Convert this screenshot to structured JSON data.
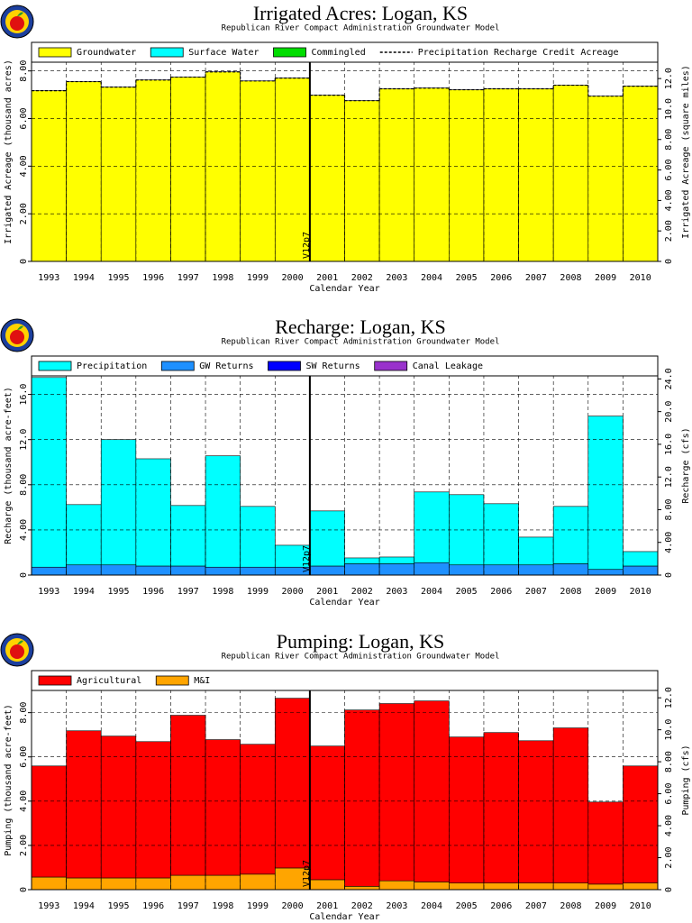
{
  "chart_data": [
    {
      "type": "bar",
      "stacked": true,
      "title": "Irrigated Acres:  Logan,  KS",
      "subtitle": "Republican River Compact Administration Groundwater Model",
      "xlabel": "Calendar Year",
      "ylabel": "Irrigated Acreage (thousand acres)",
      "y2label": "Irrigated Acreage (square miles)",
      "annotation": {
        "text": "V12p7",
        "category": "2001"
      },
      "categories": [
        "1993",
        "1994",
        "1995",
        "1996",
        "1997",
        "1998",
        "1999",
        "2000",
        "2001",
        "2002",
        "2003",
        "2004",
        "2005",
        "2006",
        "2007",
        "2008",
        "2009",
        "2010"
      ],
      "series": [
        {
          "name": "Groundwater",
          "color": "#ffff00",
          "values": [
            7.17,
            7.55,
            7.32,
            7.62,
            7.74,
            7.96,
            7.58,
            7.7,
            6.98,
            6.75,
            7.25,
            7.28,
            7.21,
            7.25,
            7.25,
            7.4,
            6.94,
            7.36
          ]
        },
        {
          "name": "Surface Water",
          "color": "#00ffff",
          "values": [
            0,
            0,
            0,
            0,
            0,
            0,
            0,
            0,
            0,
            0,
            0,
            0,
            0,
            0,
            0,
            0,
            0,
            0
          ]
        },
        {
          "name": "Commingled",
          "color": "#00dd00",
          "values": [
            0,
            0,
            0,
            0,
            0,
            0,
            0,
            0,
            0,
            0,
            0,
            0,
            0,
            0,
            0,
            0,
            0,
            0
          ]
        },
        {
          "name": "Precipitation Recharge Credit Acreage",
          "color": "#000000",
          "dashed": true,
          "values": [
            7.17,
            7.55,
            7.32,
            7.62,
            7.74,
            7.96,
            7.58,
            7.7,
            6.98,
            6.75,
            7.25,
            7.28,
            7.21,
            7.25,
            7.25,
            7.4,
            6.94,
            7.36
          ]
        }
      ],
      "ylim": [
        0,
        9.2
      ],
      "yticks": [
        0,
        {
          "value": 2,
          "label": "2.00"
        },
        {
          "value": 4,
          "label": "4.00"
        },
        {
          "value": 6,
          "label": "6.00"
        },
        {
          "value": 8,
          "label": "8.00"
        }
      ],
      "y2lim": [
        0,
        14.375
      ],
      "y2ticks": [
        0,
        {
          "value": 2,
          "label": "2.00"
        },
        {
          "value": 4,
          "label": "4.00"
        },
        {
          "value": 6,
          "label": "6.00"
        },
        {
          "value": 8,
          "label": "8.00"
        },
        {
          "value": 10,
          "label": "10.0"
        },
        {
          "value": 12,
          "label": "12.0"
        }
      ],
      "grid": true
    },
    {
      "type": "bar",
      "stacked": true,
      "title": "Recharge:  Logan,  KS",
      "subtitle": "Republican River Compact Administration Groundwater Model",
      "xlabel": "Calendar Year",
      "ylabel": "Recharge (thousand acre-feet)",
      "y2label": "Recharge (cfs)",
      "annotation": {
        "text": "V12p7",
        "category": "2001"
      },
      "categories": [
        "1993",
        "1994",
        "1995",
        "1996",
        "1997",
        "1998",
        "1999",
        "2000",
        "2001",
        "2002",
        "2003",
        "2004",
        "2005",
        "2006",
        "2007",
        "2008",
        "2009",
        "2010"
      ],
      "series": [
        {
          "name": "GW Returns",
          "color": "#1e90ff",
          "values": [
            0.7,
            0.9,
            0.9,
            0.8,
            0.8,
            0.7,
            0.7,
            0.7,
            0.8,
            1.0,
            1.0,
            1.1,
            0.9,
            0.9,
            0.9,
            1.0,
            0.5,
            0.8
          ]
        },
        {
          "name": "SW Returns",
          "color": "#0000ff",
          "values": [
            0,
            0,
            0,
            0,
            0,
            0,
            0,
            0,
            0,
            0,
            0,
            0,
            0,
            0,
            0,
            0,
            0,
            0
          ]
        },
        {
          "name": "Canal Leakage",
          "color": "#9932cc",
          "values": [
            0,
            0,
            0,
            0,
            0,
            0,
            0,
            0,
            0,
            0,
            0,
            0,
            0,
            0,
            0,
            0,
            0,
            0
          ]
        },
        {
          "name": "Precipitation",
          "color": "#00ffff",
          "values": [
            16.8,
            5.34,
            11.1,
            9.5,
            5.36,
            9.86,
            5.38,
            1.94,
            4.88,
            0.52,
            0.6,
            6.26,
            6.22,
            5.42,
            2.46,
            5.08,
            13.58,
            1.28
          ]
        }
      ],
      "legend_order": [
        "Precipitation",
        "GW Returns",
        "SW Returns",
        "Canal Leakage"
      ],
      "ylim": [
        0,
        19.4
      ],
      "yticks": [
        0,
        {
          "value": 4,
          "label": "4.00"
        },
        {
          "value": 8,
          "label": "8.00"
        },
        {
          "value": 12,
          "label": "12.0"
        },
        {
          "value": 16,
          "label": "16.0"
        }
      ],
      "y2lim": [
        0,
        26.8
      ],
      "y2ticks": [
        0,
        {
          "value": 4,
          "label": "4.00"
        },
        {
          "value": 8,
          "label": "8.00"
        },
        {
          "value": 12,
          "label": "12.0"
        },
        {
          "value": 16,
          "label": "16.0"
        },
        {
          "value": 20,
          "label": "20.0"
        },
        {
          "value": 24,
          "label": "24.0"
        }
      ],
      "grid": true
    },
    {
      "type": "bar",
      "stacked": true,
      "title": "Pumping:  Logan,  KS",
      "subtitle": "Republican River Compact Administration Groundwater Model",
      "xlabel": "Calendar Year",
      "ylabel": "Pumping (thousand acre-feet)",
      "y2label": "Pumping (cfs)",
      "annotation": {
        "text": "V12p7",
        "category": "2001"
      },
      "categories": [
        "1993",
        "1994",
        "1995",
        "1996",
        "1997",
        "1998",
        "1999",
        "2000",
        "2001",
        "2002",
        "2003",
        "2004",
        "2005",
        "2006",
        "2007",
        "2008",
        "2009",
        "2010"
      ],
      "series": [
        {
          "name": "M&I",
          "color": "#ffa500",
          "values": [
            0.57,
            0.53,
            0.53,
            0.53,
            0.65,
            0.65,
            0.7,
            0.98,
            0.45,
            0.15,
            0.4,
            0.35,
            0.3,
            0.3,
            0.3,
            0.3,
            0.25,
            0.3
          ]
        },
        {
          "name": "Agricultural",
          "color": "#ff0000",
          "values": [
            5.02,
            6.65,
            6.41,
            6.16,
            7.23,
            6.13,
            5.87,
            7.67,
            6.04,
            7.97,
            8.01,
            8.18,
            6.6,
            6.8,
            6.43,
            7.01,
            3.71,
            5.29
          ]
        }
      ],
      "legend_order": [
        "Agricultural",
        "M&I"
      ],
      "ylim": [
        0,
        9.9
      ],
      "yticks": [
        0,
        {
          "value": 2,
          "label": "2.00"
        },
        {
          "value": 4,
          "label": "4.00"
        },
        {
          "value": 6,
          "label": "6.00"
        },
        {
          "value": 8,
          "label": "8.00"
        }
      ],
      "y2lim": [
        0,
        13.7
      ],
      "y2ticks": [
        0,
        {
          "value": 2,
          "label": "2.00"
        },
        {
          "value": 4,
          "label": "4.00"
        },
        {
          "value": 6,
          "label": "6.00"
        },
        {
          "value": 8,
          "label": "8.00"
        },
        {
          "value": 10,
          "label": "10.0"
        },
        {
          "value": 12,
          "label": "12.0"
        }
      ],
      "grid": true
    }
  ]
}
